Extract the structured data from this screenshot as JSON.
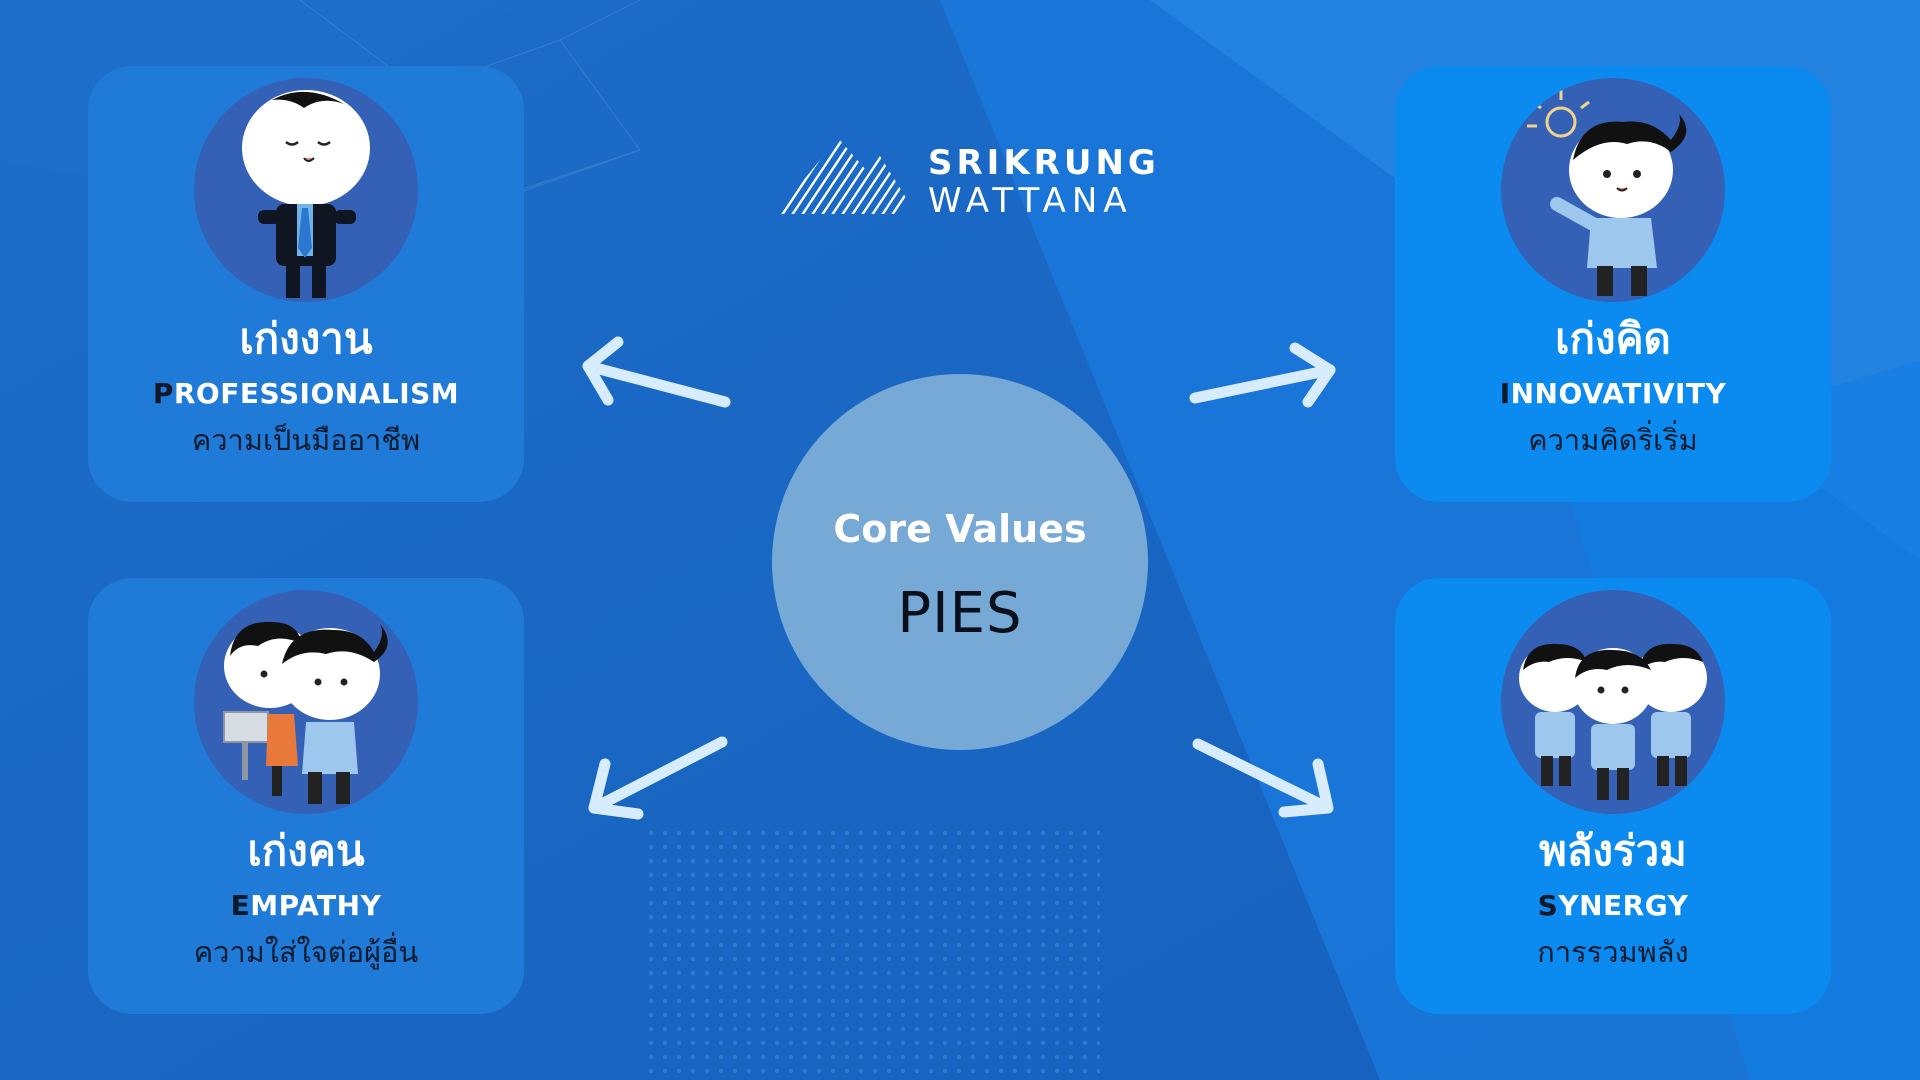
{
  "brand": {
    "line1": "SRIKRUNG",
    "line2": "WATTANA"
  },
  "center": {
    "title": "Core Values",
    "acronym": "PIES"
  },
  "values": {
    "professionalism": {
      "thai_title": "เก่งงาน",
      "eng_first": "P",
      "eng_rest": "ROFESSIONALISM",
      "thai_sub": "ความเป็นมืออาชีพ"
    },
    "innovativity": {
      "thai_title": "เก่งคิด",
      "eng_first": "I",
      "eng_rest": "NNOVATIVITY",
      "thai_sub": "ความคิดริ่เริ่ม"
    },
    "empathy": {
      "thai_title": "เก่งคน",
      "eng_first": "E",
      "eng_rest": "MPATHY",
      "thai_sub": "ความใส่ใจต่อผู้อื่น"
    },
    "synergy": {
      "thai_title": "พลังร่วม",
      "eng_first": "S",
      "eng_rest": "YNERGY",
      "thai_sub": "การรวมพลัง"
    }
  },
  "colors": {
    "background": "#1a67c6",
    "card_dark": "#1f7ad8",
    "card_light": "#0b8bf0",
    "avatar_bg": "#3461b6",
    "center_circle": "#77a9d6",
    "arrow": "#d7ecff"
  },
  "icons": {
    "professional": "businessman-character-icon",
    "innovative": "lightbulb-character-icon",
    "empathy": "two-colleagues-character-icon",
    "synergy": "team-hands-character-icon",
    "logo": "mountain-stripes-logo-icon"
  }
}
